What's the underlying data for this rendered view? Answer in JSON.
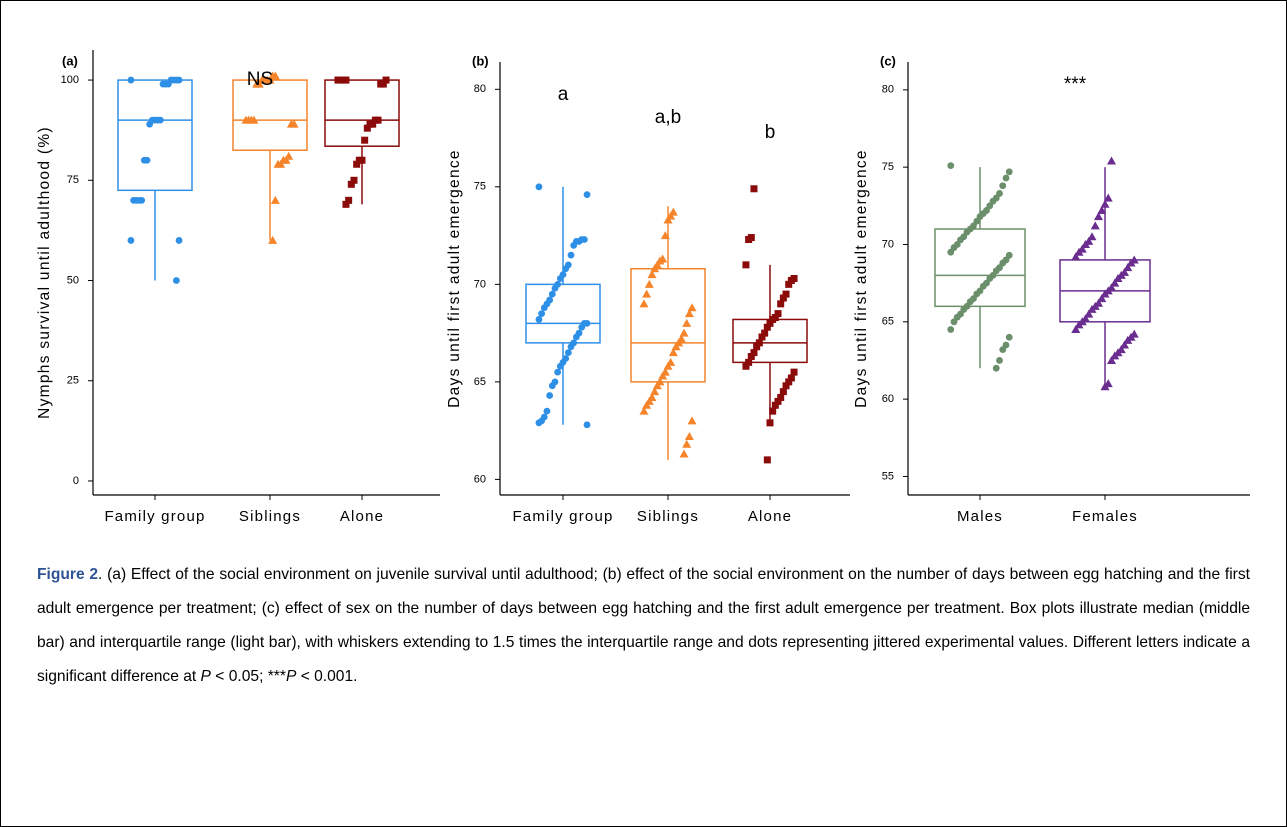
{
  "chart_data": [
    {
      "type": "box",
      "panel_label": "(a)",
      "ylabel": "Nymphs survival until adulthood (%)",
      "annotation": "NS",
      "categories": [
        "Family group",
        "Siblings",
        "Alone"
      ],
      "ylim": [
        -3.5,
        107.5
      ],
      "yticks": [
        0,
        25,
        50,
        75,
        100
      ],
      "boxes": [
        {
          "color": "#2e8fe6",
          "marker": "circle",
          "q1": 72.5,
          "median": 90,
          "q3": 100,
          "whisker_low": 50,
          "whisker_high": 100,
          "points": [
            100,
            100,
            100,
            100,
            100,
            99,
            99,
            99,
            90,
            90,
            90,
            90,
            89,
            80,
            80,
            70,
            70,
            70,
            70,
            60,
            60,
            50
          ]
        },
        {
          "color": "#f5842b",
          "marker": "triangle",
          "q1": 82.5,
          "median": 90,
          "q3": 100,
          "whisker_low": 60,
          "whisker_high": 100,
          "points": [
            101,
            101,
            100,
            100,
            100,
            100,
            99,
            99,
            90,
            90,
            90,
            90,
            89,
            89,
            81,
            80,
            80,
            79,
            79,
            70,
            60
          ]
        },
        {
          "color": "#8b0a0a",
          "marker": "square",
          "q1": 83.5,
          "median": 90,
          "q3": 100,
          "whisker_low": 69,
          "whisker_high": 100,
          "points": [
            100,
            100,
            100,
            100,
            100,
            99,
            99,
            90,
            90,
            89,
            89,
            88,
            85,
            80,
            80,
            79,
            75,
            74,
            70,
            69
          ]
        }
      ]
    },
    {
      "type": "box",
      "panel_label": "(b)",
      "ylabel": "Days until first adult emergence",
      "annotations": [
        "a",
        "a,b",
        "b"
      ],
      "categories": [
        "Family group",
        "Siblings",
        "Alone"
      ],
      "ylim": [
        59.2,
        81.4
      ],
      "yticks": [
        60,
        65,
        70,
        75,
        80
      ],
      "boxes": [
        {
          "color": "#2e8fe6",
          "marker": "circle",
          "q1": 67,
          "median": 68,
          "q3": 70,
          "whisker_low": 62.8,
          "whisker_high": 75,
          "points": [
            75,
            74.6,
            72.3,
            72.3,
            72.2,
            72.2,
            72,
            71.5,
            71,
            70.8,
            70.5,
            70.3,
            70,
            69.8,
            69.5,
            69.2,
            69,
            68.8,
            68.5,
            68.2,
            68,
            68,
            67.8,
            67.5,
            67.3,
            67,
            66.8,
            66.5,
            66.2,
            66,
            65.8,
            65.5,
            65,
            64.8,
            64.3,
            63.5,
            63.2,
            63,
            62.9,
            62.8
          ]
        },
        {
          "color": "#f5842b",
          "marker": "triangle",
          "q1": 65,
          "median": 67,
          "q3": 70.8,
          "whisker_low": 61,
          "whisker_high": 74,
          "points": [
            73.7,
            73.5,
            73.3,
            72.5,
            71.3,
            71.2,
            71,
            70.8,
            70.5,
            70,
            69.5,
            69,
            68.8,
            68.5,
            68,
            67.5,
            67.2,
            67,
            66.8,
            66.5,
            66,
            65.8,
            65.5,
            65.3,
            65,
            64.8,
            64.5,
            64.2,
            64,
            63.8,
            63.5,
            63,
            62.2,
            61.8,
            61.3
          ]
        },
        {
          "color": "#8b0a0a",
          "marker": "square",
          "q1": 66,
          "median": 67,
          "q3": 68.2,
          "whisker_low": 63,
          "whisker_high": 71,
          "points": [
            74.9,
            72.4,
            72.3,
            71,
            70.3,
            70.2,
            70,
            69.5,
            69.3,
            69,
            68.5,
            68.3,
            68.2,
            68,
            67.8,
            67.5,
            67.3,
            67,
            66.8,
            66.5,
            66.3,
            66,
            65.8,
            65.5,
            65.2,
            65,
            64.8,
            64.5,
            64.2,
            64,
            63.8,
            63.5,
            62.9,
            61
          ]
        }
      ]
    },
    {
      "type": "box",
      "panel_label": "(c)",
      "ylabel": "Days until first adult emergence",
      "annotation": "***",
      "categories": [
        "Males",
        "Females"
      ],
      "ylim": [
        53.8,
        81.8
      ],
      "yticks": [
        55,
        60,
        65,
        70,
        75,
        80
      ],
      "boxes": [
        {
          "color": "#6b8f6b",
          "marker": "circle",
          "q1": 66,
          "median": 68,
          "q3": 71,
          "whisker_low": 62,
          "whisker_high": 75,
          "points": [
            75.1,
            74.7,
            74.3,
            73.8,
            73.3,
            73,
            72.8,
            72.5,
            72.2,
            72,
            71.8,
            71.5,
            71.2,
            71,
            70.8,
            70.5,
            70.3,
            70,
            69.8,
            69.5,
            69.3,
            69,
            68.8,
            68.5,
            68.3,
            68,
            67.8,
            67.5,
            67.3,
            67,
            66.8,
            66.5,
            66.3,
            66,
            65.8,
            65.5,
            65.3,
            65,
            64.5,
            64,
            63.5,
            63.2,
            62.5,
            62
          ]
        },
        {
          "color": "#6a2d8f",
          "marker": "triangle",
          "q1": 65,
          "median": 67,
          "q3": 69,
          "whisker_low": 61,
          "whisker_high": 75,
          "points": [
            75.4,
            73,
            72.6,
            72.2,
            71.8,
            71.2,
            70.5,
            70.2,
            70,
            69.7,
            69.5,
            69.2,
            69,
            68.8,
            68.5,
            68.2,
            68,
            67.8,
            67.5,
            67.2,
            67,
            66.8,
            66.5,
            66.2,
            66,
            65.8,
            65.5,
            65.2,
            65,
            64.8,
            64.5,
            64.2,
            64,
            63.8,
            63.5,
            63.2,
            63,
            62.8,
            62.5,
            61,
            60.8
          ]
        }
      ]
    }
  ],
  "caption": {
    "parts": [
      {
        "text": "Figure 2",
        "style": "bold"
      },
      {
        "text": ". (a) Effect of the social environment on juvenile survival until adulthood; (b) effect of the social environment on the number of days between egg hatching and the first adult emergence per treatment; (c) effect of sex on the number of days between egg hatching and the first adult emergence per treatment. Box plots illustrate median (middle bar) and interquartile range (light bar), with whiskers extending to 1.5 times the interquartile range and dots representing jittered experimental values. Different letters indicate a significant difference at ",
        "style": "normal"
      },
      {
        "text": "P",
        "style": "italic"
      },
      {
        "text": " < 0.05; ***",
        "style": "normal"
      },
      {
        "text": "P",
        "style": "italic"
      },
      {
        "text": " < 0.001.",
        "style": "normal"
      }
    ]
  }
}
